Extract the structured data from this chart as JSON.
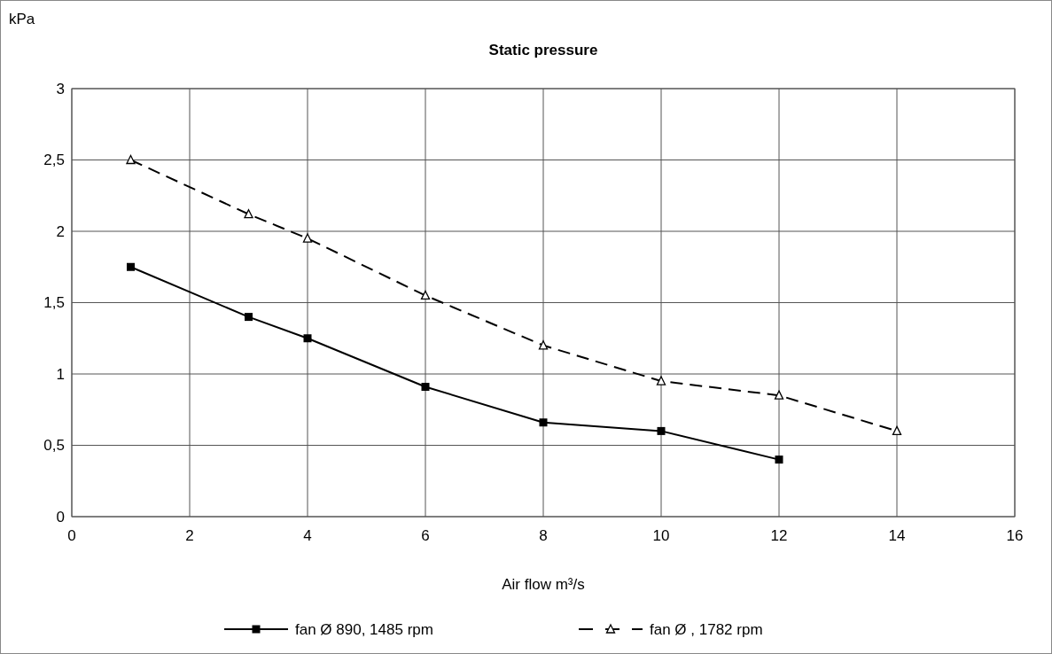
{
  "chart_data": {
    "type": "line",
    "title": "Static pressure",
    "xlabel": "Air flow m³/s",
    "ylabel": "kPa",
    "xlim": [
      0,
      16
    ],
    "xticks": [
      0,
      2,
      4,
      6,
      8,
      10,
      12,
      14,
      16
    ],
    "ylim": [
      0,
      3
    ],
    "yticks": [
      0,
      {
        "value": 0.5,
        "label": "0,5"
      },
      1,
      {
        "value": 1.5,
        "label": "1,5"
      },
      2,
      {
        "value": 2.5,
        "label": "2,5"
      },
      3
    ],
    "grid": true,
    "legend": "bottom",
    "series": [
      {
        "name": "fan Ø 890, 1485 rpm",
        "color": "#000000",
        "marker": "square",
        "line_style": "solid",
        "x": [
          1,
          3,
          4,
          6,
          8,
          10,
          12
        ],
        "values": [
          1.75,
          1.4,
          1.25,
          0.91,
          0.66,
          0.6,
          0.4
        ]
      },
      {
        "name": "fan Ø , 1782 rpm",
        "color": "#000000",
        "marker": "triangle",
        "line_style": "dashed",
        "x": [
          1,
          3,
          4,
          6,
          8,
          10,
          12,
          14
        ],
        "values": [
          2.5,
          2.12,
          1.95,
          1.55,
          1.2,
          0.95,
          0.85,
          0.6
        ]
      }
    ]
  }
}
